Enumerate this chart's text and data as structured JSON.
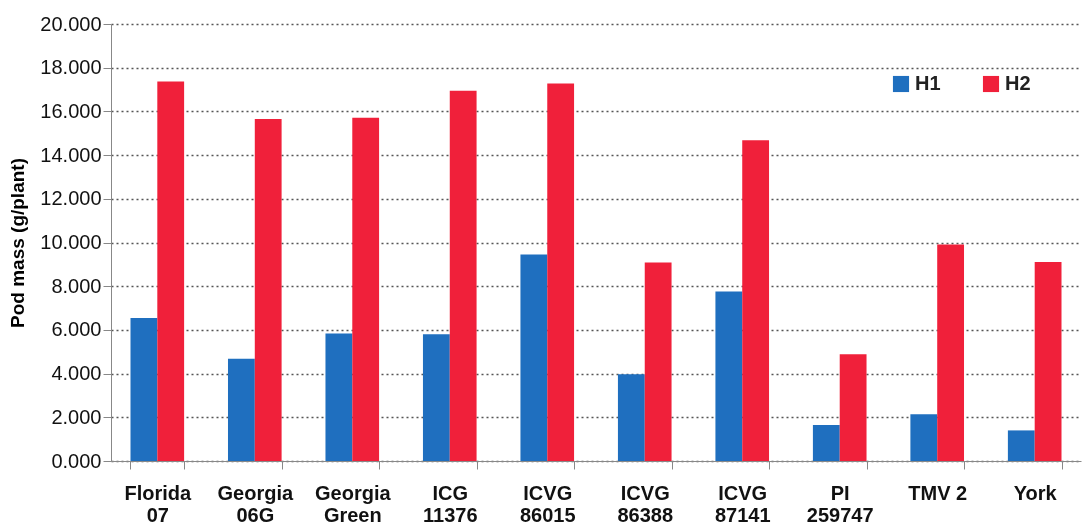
{
  "chart_data": {
    "type": "bar",
    "ylabel": "Pod mass (g/plant)",
    "categories": [
      "Florida\n07",
      "Georgia\n06G",
      "Georgia\nGreen",
      "ICG\n11376",
      "ICVG\n86015",
      "ICVG\n86388",
      "ICVG\n87141",
      "PI\n259747",
      "TMV 2",
      "York"
    ],
    "series": [
      {
        "name": "H1",
        "color": "#1f6fbf",
        "values": [
          6.55,
          4.68,
          5.84,
          5.8,
          9.45,
          3.97,
          7.76,
          1.65,
          2.14,
          1.4
        ]
      },
      {
        "name": "H2",
        "color": "#f0203a",
        "values": [
          17.37,
          15.65,
          15.71,
          16.95,
          17.28,
          9.08,
          14.68,
          4.89,
          9.91,
          9.11
        ]
      }
    ],
    "ylim": [
      0,
      20
    ],
    "yticks": [
      {
        "value": 0,
        "label": "0.000"
      },
      {
        "value": 2,
        "label": "2.000"
      },
      {
        "value": 4,
        "label": "4.000"
      },
      {
        "value": 6,
        "label": "6.000"
      },
      {
        "value": 8,
        "label": "8.000"
      },
      {
        "value": 10,
        "label": "10.000"
      },
      {
        "value": 12,
        "label": "12.000"
      },
      {
        "value": 14,
        "label": "14.000"
      },
      {
        "value": 16,
        "label": "16.000"
      },
      {
        "value": 18,
        "label": "18.000"
      },
      {
        "value": 20,
        "label": "20.000"
      }
    ],
    "grid": "y",
    "legend": "top right"
  }
}
